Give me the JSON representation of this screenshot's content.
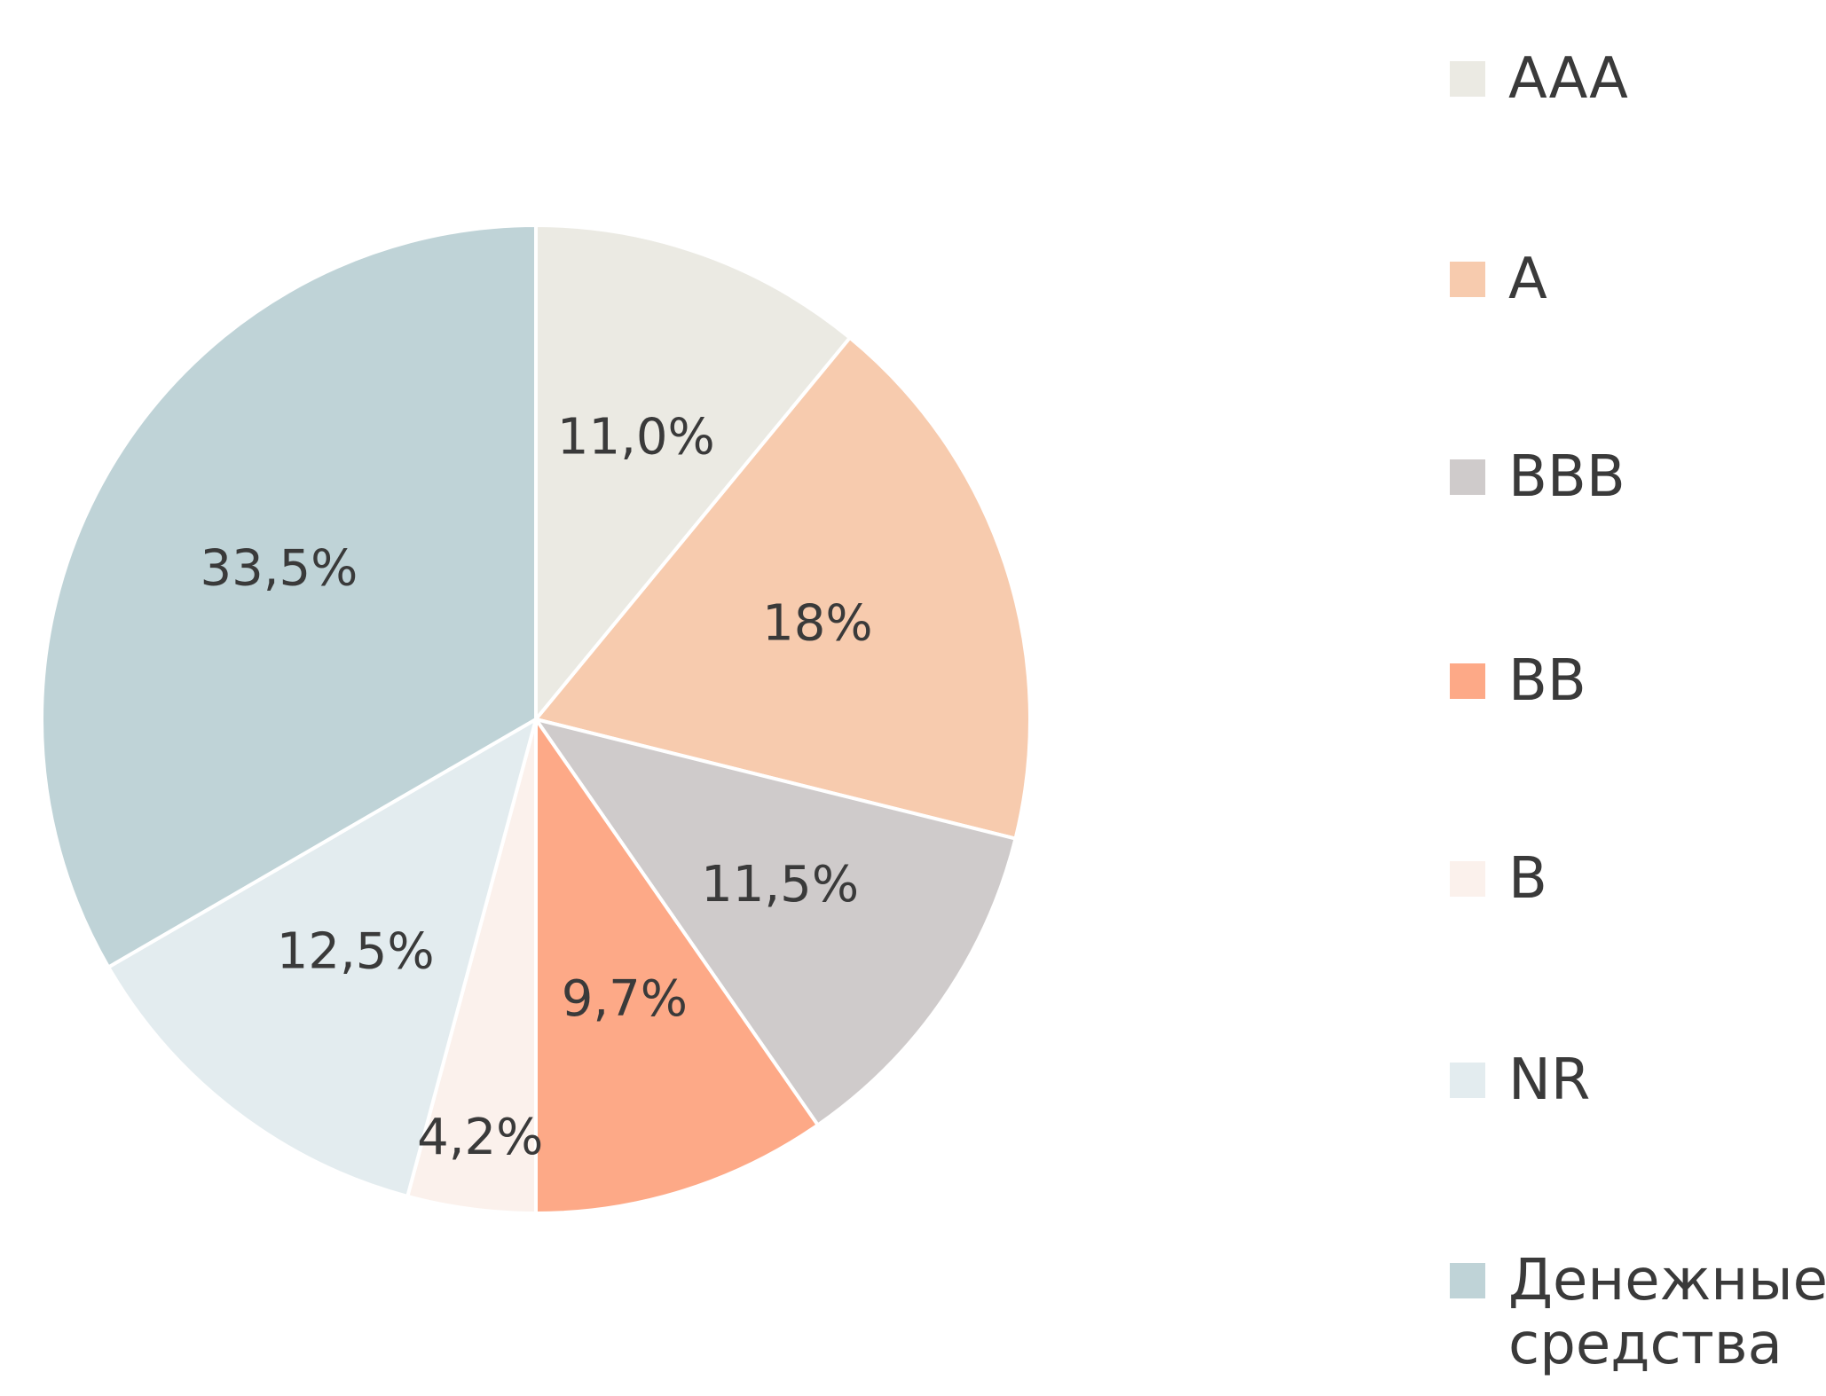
{
  "chart_data": {
    "type": "pie",
    "categories": [
      "AAA",
      "A",
      "BBB",
      "BB",
      "B",
      "NR",
      "Денежные средства"
    ],
    "values": [
      11.0,
      18,
      11.5,
      9.7,
      4.2,
      12.5,
      33.5
    ],
    "value_labels": [
      "11,0%",
      "18%",
      "11,5%",
      "9,7%",
      "4,2%",
      "12,5%",
      "33,5%"
    ],
    "colors": [
      "#ebeae3",
      "#f7cbae",
      "#cfcbcb",
      "#fda987",
      "#fbf1ec",
      "#e3ecef",
      "#bfd3d7"
    ],
    "legend": "right"
  }
}
